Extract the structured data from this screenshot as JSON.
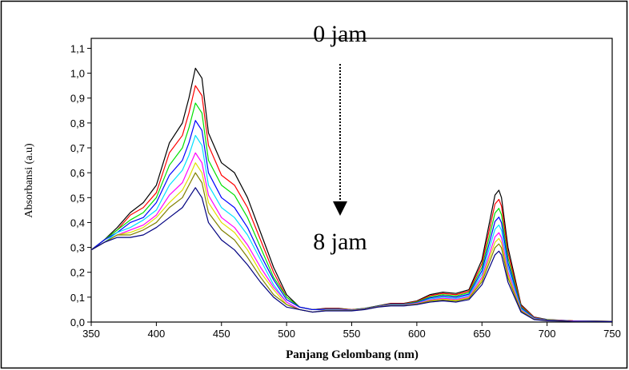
{
  "chart_data": {
    "type": "line",
    "x_label": "Panjang Gelombang (nm)",
    "y_label": "Absorbansi (a.u)",
    "annotations": [
      "0 jam",
      "8 jam"
    ],
    "xlim": [
      350,
      750
    ],
    "xticks": [
      350,
      400,
      450,
      500,
      550,
      600,
      650,
      700,
      750
    ],
    "ylim": [
      0,
      1.14
    ],
    "yticks": [
      {
        "value": 0,
        "label": "0,0"
      },
      {
        "value": 0.1,
        "label": "0,1"
      },
      {
        "value": 0.2,
        "label": "0,2"
      },
      {
        "value": 0.3,
        "label": "0,3"
      },
      {
        "value": 0.4,
        "label": "0,4"
      },
      {
        "value": 0.5,
        "label": "0,5"
      },
      {
        "value": 0.6,
        "label": "0,6"
      },
      {
        "value": 0.7,
        "label": "0,7"
      },
      {
        "value": 0.8,
        "label": "0,8"
      },
      {
        "value": 0.9,
        "label": "0,9"
      },
      {
        "value": 1.0,
        "label": "1,0"
      },
      {
        "value": 1.1,
        "label": "1,1"
      }
    ],
    "x": [
      350,
      360,
      370,
      380,
      390,
      400,
      410,
      420,
      425,
      430,
      435,
      440,
      450,
      460,
      470,
      480,
      490,
      500,
      510,
      520,
      530,
      540,
      550,
      560,
      570,
      580,
      590,
      600,
      610,
      620,
      630,
      640,
      650,
      655,
      660,
      663,
      665,
      670,
      680,
      690,
      700,
      720,
      750
    ],
    "series": [
      {
        "color": "#000000",
        "values": [
          0.29,
          0.33,
          0.38,
          0.44,
          0.48,
          0.55,
          0.72,
          0.8,
          0.9,
          1.02,
          0.98,
          0.76,
          0.64,
          0.6,
          0.5,
          0.36,
          0.22,
          0.11,
          0.06,
          0.05,
          0.055,
          0.055,
          0.05,
          0.055,
          0.065,
          0.075,
          0.075,
          0.085,
          0.11,
          0.12,
          0.115,
          0.13,
          0.25,
          0.38,
          0.51,
          0.53,
          0.5,
          0.3,
          0.07,
          0.02,
          0.01,
          0.005,
          0.003
        ]
      },
      {
        "color": "#ff0000",
        "values": [
          0.29,
          0.33,
          0.37,
          0.43,
          0.46,
          0.52,
          0.68,
          0.75,
          0.84,
          0.95,
          0.91,
          0.71,
          0.59,
          0.55,
          0.46,
          0.33,
          0.2,
          0.1,
          0.06,
          0.05,
          0.054,
          0.054,
          0.05,
          0.054,
          0.064,
          0.074,
          0.074,
          0.083,
          0.106,
          0.115,
          0.11,
          0.124,
          0.235,
          0.355,
          0.474,
          0.493,
          0.466,
          0.279,
          0.066,
          0.019,
          0.009,
          0.005,
          0.003
        ]
      },
      {
        "color": "#00e000",
        "values": [
          0.29,
          0.33,
          0.37,
          0.41,
          0.44,
          0.5,
          0.63,
          0.7,
          0.78,
          0.88,
          0.84,
          0.65,
          0.55,
          0.51,
          0.42,
          0.3,
          0.18,
          0.1,
          0.06,
          0.05,
          0.052,
          0.052,
          0.049,
          0.054,
          0.064,
          0.072,
          0.072,
          0.081,
          0.101,
          0.11,
          0.105,
          0.118,
          0.22,
          0.329,
          0.438,
          0.457,
          0.431,
          0.258,
          0.061,
          0.017,
          0.009,
          0.004,
          0.003
        ]
      },
      {
        "color": "#0000ff",
        "values": [
          0.29,
          0.33,
          0.36,
          0.4,
          0.42,
          0.48,
          0.59,
          0.65,
          0.72,
          0.81,
          0.77,
          0.6,
          0.5,
          0.46,
          0.38,
          0.27,
          0.17,
          0.09,
          0.06,
          0.05,
          0.051,
          0.051,
          0.048,
          0.053,
          0.063,
          0.071,
          0.071,
          0.078,
          0.097,
          0.105,
          0.1,
          0.112,
          0.206,
          0.305,
          0.404,
          0.422,
          0.399,
          0.238,
          0.057,
          0.016,
          0.008,
          0.004,
          0.003
        ]
      },
      {
        "color": "#00e0ff",
        "values": [
          0.29,
          0.32,
          0.36,
          0.38,
          0.41,
          0.45,
          0.55,
          0.61,
          0.67,
          0.75,
          0.71,
          0.55,
          0.46,
          0.42,
          0.35,
          0.25,
          0.15,
          0.08,
          0.05,
          0.04,
          0.049,
          0.049,
          0.047,
          0.052,
          0.062,
          0.069,
          0.069,
          0.076,
          0.093,
          0.1,
          0.095,
          0.107,
          0.193,
          0.283,
          0.373,
          0.39,
          0.369,
          0.22,
          0.053,
          0.014,
          0.007,
          0.004,
          0.002
        ]
      },
      {
        "color": "#ff00ff",
        "values": [
          0.29,
          0.32,
          0.35,
          0.37,
          0.39,
          0.43,
          0.51,
          0.56,
          0.62,
          0.68,
          0.64,
          0.51,
          0.42,
          0.38,
          0.31,
          0.22,
          0.14,
          0.08,
          0.05,
          0.04,
          0.048,
          0.048,
          0.047,
          0.052,
          0.062,
          0.068,
          0.068,
          0.075,
          0.089,
          0.096,
          0.091,
          0.102,
          0.18,
          0.261,
          0.342,
          0.359,
          0.339,
          0.202,
          0.049,
          0.013,
          0.007,
          0.004,
          0.002
        ]
      },
      {
        "color": "#e0e000",
        "values": [
          0.29,
          0.32,
          0.35,
          0.36,
          0.38,
          0.42,
          0.48,
          0.53,
          0.58,
          0.64,
          0.6,
          0.48,
          0.4,
          0.36,
          0.29,
          0.2,
          0.13,
          0.07,
          0.05,
          0.04,
          0.047,
          0.047,
          0.046,
          0.051,
          0.061,
          0.067,
          0.067,
          0.073,
          0.086,
          0.092,
          0.087,
          0.098,
          0.171,
          0.246,
          0.32,
          0.336,
          0.318,
          0.189,
          0.046,
          0.012,
          0.006,
          0.003,
          0.002
        ]
      },
      {
        "color": "#808000",
        "values": [
          0.29,
          0.32,
          0.35,
          0.35,
          0.37,
          0.4,
          0.46,
          0.5,
          0.55,
          0.6,
          0.56,
          0.44,
          0.37,
          0.33,
          0.26,
          0.18,
          0.11,
          0.07,
          0.05,
          0.04,
          0.046,
          0.046,
          0.046,
          0.051,
          0.061,
          0.066,
          0.066,
          0.072,
          0.084,
          0.089,
          0.084,
          0.095,
          0.162,
          0.23,
          0.299,
          0.314,
          0.298,
          0.177,
          0.044,
          0.011,
          0.006,
          0.003,
          0.002
        ]
      },
      {
        "color": "#000080",
        "values": [
          0.29,
          0.32,
          0.34,
          0.34,
          0.35,
          0.38,
          0.42,
          0.46,
          0.5,
          0.54,
          0.5,
          0.4,
          0.33,
          0.29,
          0.23,
          0.16,
          0.1,
          0.06,
          0.05,
          0.04,
          0.045,
          0.045,
          0.045,
          0.05,
          0.06,
          0.065,
          0.065,
          0.07,
          0.08,
          0.085,
          0.08,
          0.09,
          0.15,
          0.21,
          0.27,
          0.285,
          0.27,
          0.16,
          0.04,
          0.01,
          0.005,
          0.003,
          0.002
        ]
      }
    ]
  }
}
